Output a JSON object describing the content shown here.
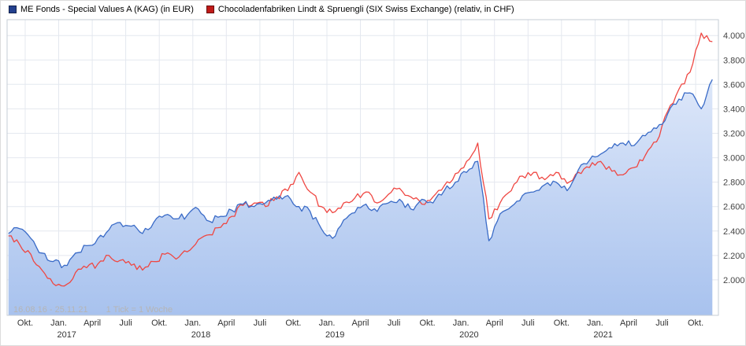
{
  "legend": [
    {
      "label": "ME Fonds - Special Values A (KAG) (in EUR)",
      "marker_color": "#23408e"
    },
    {
      "label": "Chocoladenfabriken Lindt & Spruengli (SIX Swiss Exchange) (relativ, in CHF)",
      "marker_color": "#c01a18"
    }
  ],
  "footer": {
    "date_range": "16.08.16 - 25.11.21",
    "tick_info": "1 Tick = 1 Woche"
  },
  "colors": {
    "grid": "#e4e8ef",
    "plot_border": "#c6ccd6",
    "axis_text": "#333333",
    "y_axis_text": "#444444",
    "footer_text": "#b5b5b5",
    "area_top": "#dde7f9",
    "area_bottom": "#a8c2ee",
    "blue_line": "#3a6bc7",
    "red_line": "#ef4742"
  },
  "chart_data": {
    "type": "line",
    "title": "",
    "xlabel": "",
    "ylabel": "",
    "x_unit": "decimal_year",
    "x_start": 2016.625,
    "x_step": 0.0833333,
    "xlim": [
      2016.615,
      2021.92
    ],
    "ylim": [
      1.71,
      4.13
    ],
    "grid": true,
    "legend_position": "top-left",
    "y_ticks": [
      {
        "v": 2.0,
        "label": "2.000"
      },
      {
        "v": 2.2,
        "label": "2.200"
      },
      {
        "v": 2.4,
        "label": "2.400"
      },
      {
        "v": 2.6,
        "label": "2.600"
      },
      {
        "v": 2.8,
        "label": "2.800"
      },
      {
        "v": 3.0,
        "label": "3.000"
      },
      {
        "v": 3.2,
        "label": "3.200"
      },
      {
        "v": 3.4,
        "label": "3.400"
      },
      {
        "v": 3.6,
        "label": "3.600"
      },
      {
        "v": 3.8,
        "label": "3.800"
      },
      {
        "v": 4.0,
        "label": "4.000"
      }
    ],
    "x_ticks": [
      {
        "x": 2016.75,
        "label": "Okt."
      },
      {
        "x": 2017.0,
        "label": "Jan."
      },
      {
        "x": 2017.25,
        "label": "April"
      },
      {
        "x": 2017.5,
        "label": "Juli"
      },
      {
        "x": 2017.75,
        "label": "Okt."
      },
      {
        "x": 2018.0,
        "label": "Jan."
      },
      {
        "x": 2018.25,
        "label": "April"
      },
      {
        "x": 2018.5,
        "label": "Juli"
      },
      {
        "x": 2018.75,
        "label": "Okt."
      },
      {
        "x": 2019.0,
        "label": "Jan."
      },
      {
        "x": 2019.25,
        "label": "April"
      },
      {
        "x": 2019.5,
        "label": "Juli"
      },
      {
        "x": 2019.75,
        "label": "Okt."
      },
      {
        "x": 2020.0,
        "label": "Jan."
      },
      {
        "x": 2020.25,
        "label": "April"
      },
      {
        "x": 2020.5,
        "label": "Juli"
      },
      {
        "x": 2020.75,
        "label": "Okt."
      },
      {
        "x": 2021.0,
        "label": "Jan."
      },
      {
        "x": 2021.25,
        "label": "April"
      },
      {
        "x": 2021.5,
        "label": "Juli"
      },
      {
        "x": 2021.75,
        "label": "Okt."
      }
    ],
    "year_ticks": [
      {
        "x": 2017.06,
        "label": "2017"
      },
      {
        "x": 2018.06,
        "label": "2018"
      },
      {
        "x": 2019.06,
        "label": "2019"
      },
      {
        "x": 2020.06,
        "label": "2020"
      },
      {
        "x": 2021.06,
        "label": "2021"
      }
    ],
    "series": [
      {
        "name": "ME Fonds - Special Values A (KAG) (in EUR)",
        "color": "#3a6bc7",
        "fill": true,
        "cadence": "monthly from Aug 2016 to Nov 2021",
        "values": [
          2.38,
          2.42,
          2.34,
          2.22,
          2.15,
          2.12,
          2.22,
          2.28,
          2.34,
          2.41,
          2.47,
          2.44,
          2.38,
          2.47,
          2.53,
          2.5,
          2.53,
          2.58,
          2.48,
          2.52,
          2.57,
          2.62,
          2.6,
          2.63,
          2.66,
          2.69,
          2.6,
          2.56,
          2.42,
          2.34,
          2.49,
          2.55,
          2.62,
          2.56,
          2.63,
          2.66,
          2.58,
          2.66,
          2.63,
          2.73,
          2.8,
          2.88,
          2.97,
          2.32,
          2.54,
          2.6,
          2.69,
          2.72,
          2.78,
          2.8,
          2.73,
          2.9,
          2.98,
          3.03,
          3.08,
          3.12,
          3.1,
          3.18,
          3.24,
          3.36,
          3.48,
          3.53,
          3.4,
          3.64
        ]
      },
      {
        "name": "Chocoladenfabriken Lindt & Spruengli (SIX Swiss Exchange) (relativ, in CHF)",
        "color": "#ef4742",
        "fill": false,
        "cadence": "monthly from Aug 2016 to Nov 2021",
        "values": [
          2.36,
          2.29,
          2.21,
          2.08,
          1.97,
          1.95,
          2.06,
          2.1,
          2.13,
          2.2,
          2.16,
          2.12,
          2.08,
          2.15,
          2.21,
          2.17,
          2.23,
          2.33,
          2.37,
          2.43,
          2.52,
          2.61,
          2.63,
          2.6,
          2.68,
          2.73,
          2.88,
          2.72,
          2.6,
          2.55,
          2.63,
          2.67,
          2.72,
          2.63,
          2.7,
          2.75,
          2.68,
          2.62,
          2.68,
          2.77,
          2.87,
          2.97,
          3.12,
          2.5,
          2.63,
          2.73,
          2.85,
          2.88,
          2.82,
          2.88,
          2.79,
          2.88,
          2.92,
          2.97,
          2.89,
          2.86,
          2.92,
          3.02,
          3.13,
          3.38,
          3.56,
          3.7,
          4.02,
          3.95
        ]
      }
    ]
  }
}
